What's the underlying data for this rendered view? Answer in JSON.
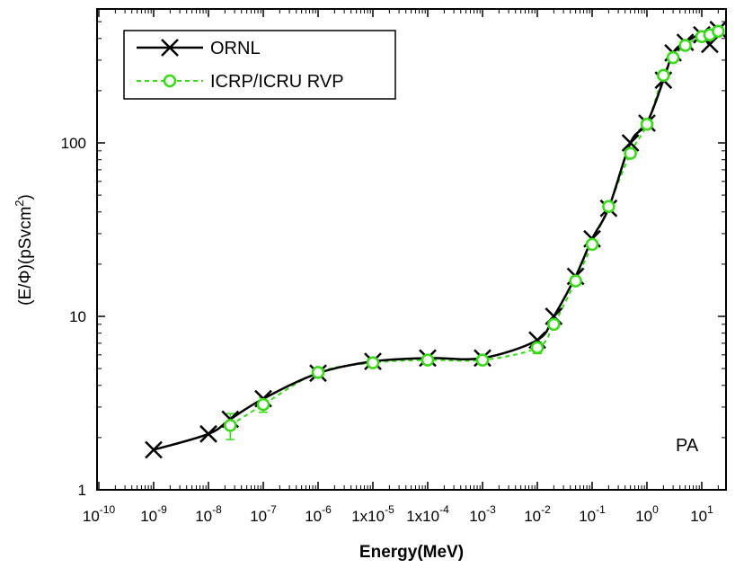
{
  "chart_data": {
    "type": "line",
    "xscale": "log",
    "yscale": "log",
    "xlim": [
      1e-10,
      40
    ],
    "ylim": [
      1,
      600
    ],
    "xlabel": "Energy(MeV)",
    "ylabel": "(E/Φ)(pSvcm",
    "ylabel_sup": "2",
    "ylabel_end": ")",
    "annotation": "PA",
    "legend_position": "top-left",
    "x_tick_labels": [
      {
        "v": 1e-10,
        "base": "10",
        "exp": "-10"
      },
      {
        "v": 1e-09,
        "base": "10",
        "exp": "-9"
      },
      {
        "v": 1e-08,
        "base": "10",
        "exp": "-8"
      },
      {
        "v": 1e-07,
        "base": "10",
        "exp": "-7"
      },
      {
        "v": 1e-06,
        "base": "10",
        "exp": "-6"
      },
      {
        "v": 1e-05,
        "base": "1x10",
        "exp": "-5"
      },
      {
        "v": 0.0001,
        "base": "1x10",
        "exp": "-4"
      },
      {
        "v": 0.001,
        "base": "10",
        "exp": "-3"
      },
      {
        "v": 0.01,
        "base": "10",
        "exp": "-2"
      },
      {
        "v": 0.1,
        "base": "10",
        "exp": "-1"
      },
      {
        "v": 1,
        "base": "10",
        "exp": "0"
      },
      {
        "v": 10,
        "base": "10",
        "exp": "1"
      }
    ],
    "y_tick_labels": [
      {
        "v": 1,
        "text": "1"
      },
      {
        "v": 10,
        "text": "10"
      },
      {
        "v": 100,
        "text": "100"
      }
    ],
    "series": [
      {
        "name": "ORNL",
        "color": "#000000",
        "marker": "x",
        "x": [
          1e-09,
          1e-08,
          2.5e-08,
          1e-07,
          1e-06,
          1e-05,
          0.0001,
          0.001,
          0.01,
          0.02,
          0.05,
          0.1,
          0.2,
          0.5,
          1,
          2,
          3,
          5,
          10,
          14,
          20
        ],
        "y": [
          1.7,
          2.1,
          2.55,
          3.35,
          4.7,
          5.5,
          5.75,
          5.75,
          7.3,
          10,
          17,
          28,
          42,
          100,
          130,
          230,
          330,
          380,
          420,
          370,
          450
        ]
      },
      {
        "name": "ICRP/ICRU RVP",
        "color": "#33dd11",
        "marker": "o",
        "x": [
          2.5e-08,
          1e-07,
          1e-06,
          1e-05,
          0.0001,
          0.001,
          0.01,
          0.02,
          0.05,
          0.1,
          0.2,
          0.5,
          1,
          2,
          3,
          5,
          10,
          14,
          20
        ],
        "y": [
          2.35,
          3.1,
          4.75,
          5.4,
          5.6,
          5.6,
          6.6,
          9.0,
          16,
          26,
          43,
          87,
          128,
          245,
          310,
          365,
          410,
          420,
          440
        ],
        "err_low": [
          1.95,
          2.8,
          null,
          null,
          null,
          null,
          6.1,
          null,
          null,
          null,
          null,
          null,
          null,
          null,
          null,
          null,
          null,
          null,
          null
        ],
        "err_high": [
          2.75,
          3.4,
          null,
          null,
          null,
          null,
          7.1,
          null,
          null,
          null,
          null,
          null,
          null,
          null,
          null,
          null,
          null,
          null,
          null
        ]
      }
    ]
  }
}
